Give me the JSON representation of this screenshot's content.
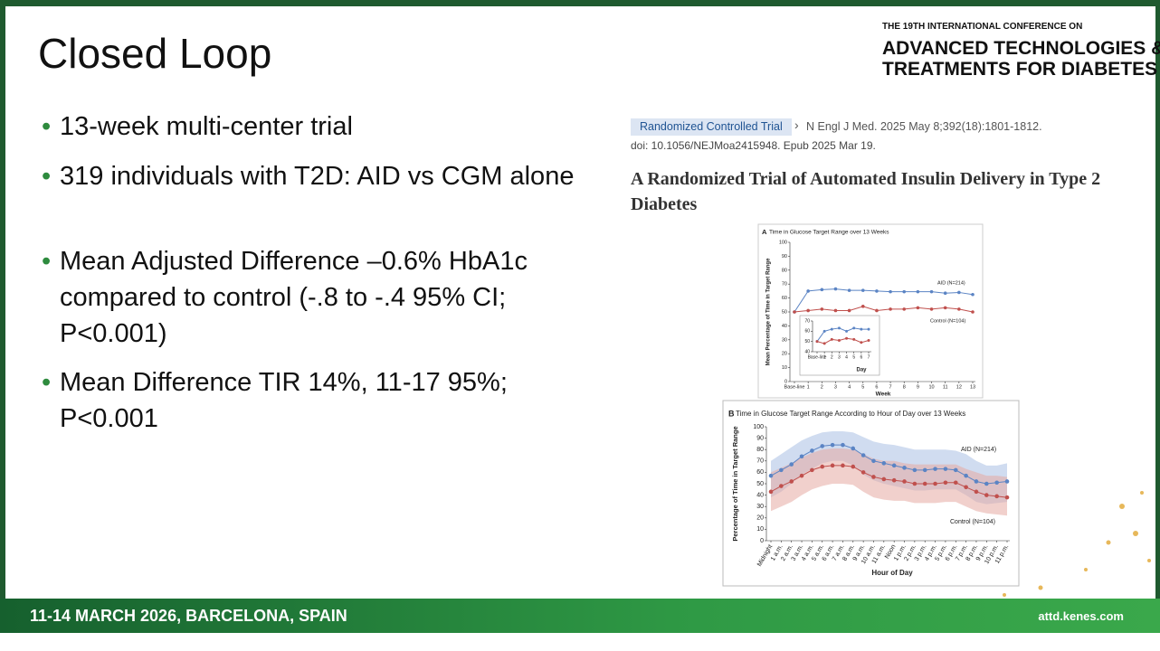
{
  "header": {
    "line1": "THE 19TH INTERNATIONAL CONFERENCE ON",
    "line2": "ADVANCED TECHNOLOGIES &",
    "line3": "TREATMENTS FOR DIABETES"
  },
  "title": "Closed Loop",
  "bullets": [
    "13-week multi-center trial",
    "319 individuals with T2D: AID vs CGM alone",
    "Mean Adjusted Difference –0.6% HbA1c compared to control (-.8 to -.4 95% CI; P<0.001)",
    "Mean Difference TIR 14%, 11-17 95%; P<0.001"
  ],
  "citation": {
    "tag": "Randomized Controlled Trial",
    "journal": "N Engl J Med. 2025 May 8;392(18):1801-1812.",
    "doi": "doi: 10.1056/NEJMoa2415948. Epub 2025 Mar 19.",
    "article_title": "A Randomized Trial of Automated Insulin Delivery in Type 2 Diabetes"
  },
  "footer": {
    "left": "11-14 MARCH 2026, BARCELONA, SPAIN",
    "right": "attd.kenes.com"
  },
  "chart_data": [
    {
      "type": "line",
      "panel": "A",
      "title": "Time in Glucose Target Range over 13 Weeks",
      "x_label": "Week",
      "y_label": "Mean Percentage of Time in Target Range",
      "categories": [
        "Base-line",
        "1",
        "2",
        "3",
        "4",
        "5",
        "6",
        "7",
        "8",
        "9",
        "10",
        "11",
        "12",
        "13"
      ],
      "series": [
        {
          "name": "AID (N=214)",
          "color": "#5b84c4",
          "values": [
            50,
            65,
            66,
            66.5,
            65.5,
            65.5,
            65,
            64.5,
            64.5,
            64.5,
            64.5,
            63.5,
            64,
            62.5
          ]
        },
        {
          "name": "Control (N=104)",
          "color": "#c0504d",
          "values": [
            50,
            51,
            52,
            51,
            51,
            54,
            51,
            52,
            52,
            53,
            52,
            53,
            52,
            50
          ]
        }
      ],
      "ylim": [
        0,
        100
      ],
      "yticks": [
        0,
        10,
        20,
        30,
        40,
        50,
        60,
        70,
        80,
        90,
        100
      ]
    },
    {
      "type": "line",
      "x_label": "Day",
      "categories": [
        "Base-line",
        "1",
        "2",
        "3",
        "4",
        "5",
        "6",
        "7"
      ],
      "series": [
        {
          "color": "#5b84c4",
          "values": [
            50,
            60,
            62,
            63,
            60,
            63,
            62,
            62
          ]
        },
        {
          "color": "#c0504d",
          "values": [
            50,
            48,
            52,
            51,
            53,
            52,
            49,
            51
          ]
        }
      ],
      "ylim": [
        40,
        70
      ],
      "yticks": [
        40,
        50,
        60,
        70
      ]
    },
    {
      "type": "line",
      "panel": "B",
      "title": "Time in Glucose Target Range According to Hour of Day over 13 Weeks",
      "x_label": "Hour of Day",
      "y_label": "Percentage of Time in Target Range",
      "categories": [
        "Midnight",
        "1 a.m.",
        "2 a.m.",
        "3 a.m.",
        "4 a.m.",
        "5 a.m.",
        "6 a.m.",
        "7 a.m.",
        "8 a.m.",
        "9 a.m.",
        "10 a.m.",
        "11 a.m.",
        "Noon",
        "1 p.m.",
        "2 p.m.",
        "3 p.m.",
        "4 p.m.",
        "5 p.m.",
        "6 p.m.",
        "7 p.m.",
        "8 p.m.",
        "9 p.m.",
        "10 p.m.",
        "11 p.m."
      ],
      "series": [
        {
          "name": "AID (N=214)",
          "color": "#5b84c4",
          "band_color": "#a9bfe3",
          "values": [
            57,
            62,
            67,
            74,
            79,
            83,
            84,
            84,
            81,
            75,
            70,
            68,
            66,
            64,
            62,
            62,
            63,
            63,
            62,
            57,
            52,
            50,
            51,
            52
          ],
          "band_low": [
            38,
            43,
            50,
            58,
            63,
            68,
            70,
            70,
            66,
            58,
            53,
            50,
            48,
            46,
            44,
            44,
            45,
            45,
            45,
            40,
            34,
            32,
            33,
            34
          ],
          "band_high": [
            70,
            76,
            82,
            88,
            92,
            95,
            96,
            96,
            95,
            91,
            87,
            85,
            84,
            82,
            80,
            80,
            80,
            80,
            79,
            76,
            70,
            66,
            66,
            68
          ]
        },
        {
          "name": "Control (N=104)",
          "color": "#c0504d",
          "band_color": "#e6aaa3",
          "values": [
            43,
            48,
            52,
            57,
            62,
            65,
            66,
            66,
            65,
            60,
            56,
            54,
            53,
            52,
            50,
            50,
            50,
            51,
            51,
            47,
            43,
            40,
            39,
            38
          ],
          "band_low": [
            26,
            30,
            34,
            40,
            45,
            48,
            50,
            50,
            49,
            43,
            38,
            36,
            35,
            35,
            33,
            33,
            33,
            34,
            34,
            30,
            26,
            24,
            23,
            22
          ],
          "band_high": [
            60,
            64,
            68,
            73,
            77,
            80,
            81,
            81,
            80,
            76,
            72,
            70,
            70,
            68,
            67,
            67,
            67,
            67,
            67,
            63,
            60,
            57,
            57,
            56
          ]
        }
      ],
      "ylim": [
        0,
        100
      ],
      "yticks": [
        0,
        10,
        20,
        30,
        40,
        50,
        60,
        70,
        80,
        90,
        100
      ]
    }
  ]
}
